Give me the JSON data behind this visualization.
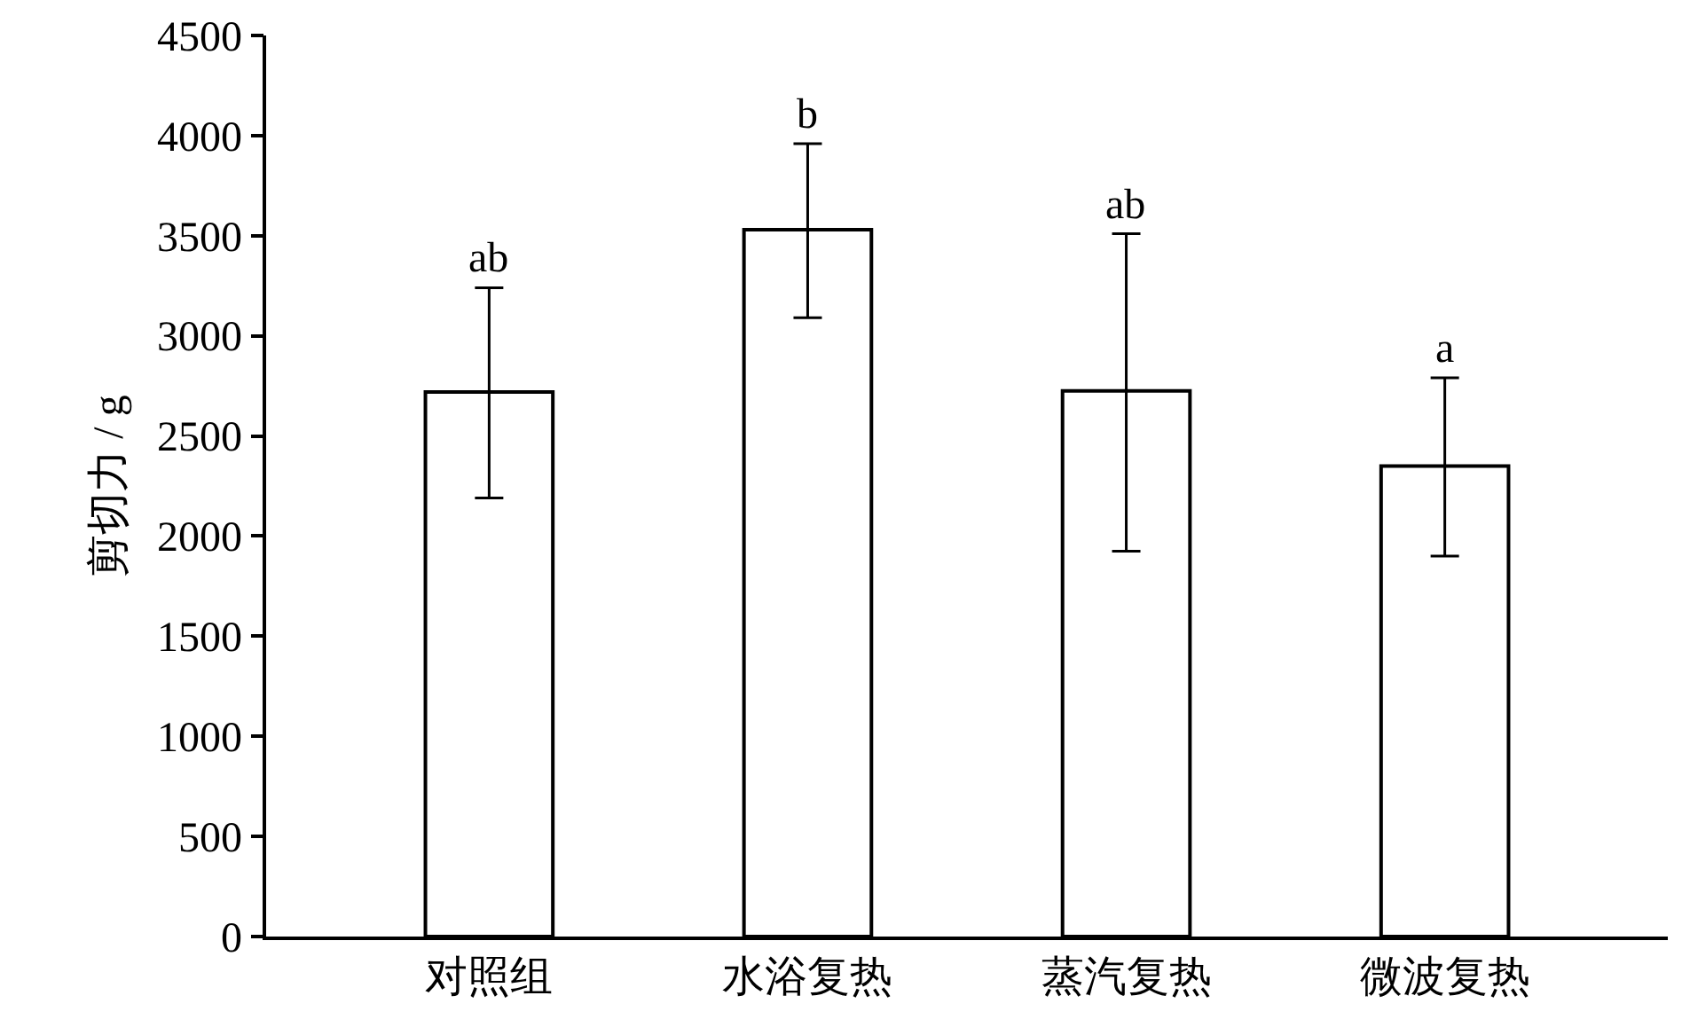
{
  "chart_data": {
    "type": "bar",
    "ylabel": "剪切力 / g",
    "categories": [
      "对照组",
      "水浴复热",
      "蒸汽复热",
      "微波复热"
    ],
    "values": [
      2720,
      3530,
      2725,
      2350
    ],
    "errors": [
      [
        2190,
        3240
      ],
      [
        3090,
        3960
      ],
      [
        1925,
        3510
      ],
      [
        1900,
        2790
      ]
    ],
    "color": "#ffffff",
    "ylim": [
      0,
      4500
    ],
    "yticks": [
      0,
      500,
      1000,
      1500,
      2000,
      2500,
      3000,
      3500,
      4000,
      4500
    ],
    "grid": false,
    "annotations": [
      {
        "text": "ab",
        "x": "对照组",
        "y": 3240
      },
      {
        "text": "b",
        "x": "水浴复热",
        "y": 3960
      },
      {
        "text": "ab",
        "x": "蒸汽复热",
        "y": 3510
      },
      {
        "text": "a",
        "x": "微波复热",
        "y": 2790
      }
    ]
  }
}
